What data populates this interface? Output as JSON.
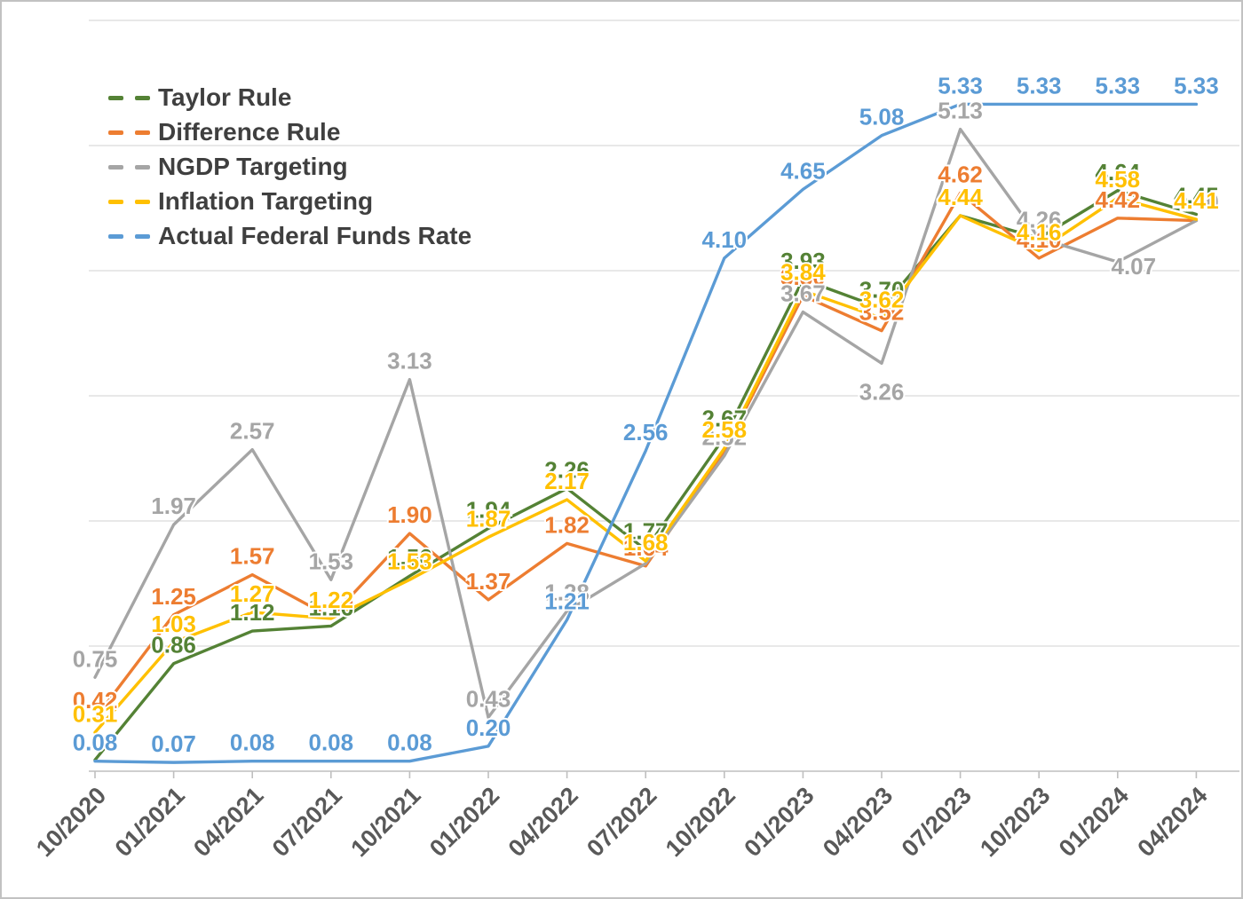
{
  "chart_data": {
    "type": "line",
    "title": "",
    "xlabel": "",
    "ylabel": "",
    "ylim": [
      0,
      6
    ],
    "grid": true,
    "legend_position": "top-left",
    "categories": [
      "10/2020",
      "01/2021",
      "04/2021",
      "07/2021",
      "10/2021",
      "01/2022",
      "04/2022",
      "07/2022",
      "10/2022",
      "01/2023",
      "04/2023",
      "07/2023",
      "10/2023",
      "01/2024",
      "04/2024"
    ],
    "series": [
      {
        "name": "Taylor Rule",
        "color": "#548235",
        "values": [
          0.09,
          0.86,
          1.12,
          1.16,
          1.56,
          1.94,
          2.26,
          1.77,
          2.67,
          3.93,
          3.7,
          4.44,
          4.26,
          4.64,
          4.45
        ],
        "labels": [
          "",
          "0.86",
          "1.12",
          "1.16",
          "1.56",
          "1.94",
          "2.26",
          "1.77",
          "2.67",
          "3.93",
          "3.70",
          "4.44",
          "4.26",
          "4.64",
          "4.45"
        ]
      },
      {
        "name": "Difference Rule",
        "color": "#ed7d31",
        "values": [
          0.42,
          1.25,
          1.57,
          1.23,
          1.9,
          1.37,
          1.82,
          1.64,
          2.56,
          3.8,
          3.52,
          4.62,
          4.1,
          4.42,
          4.4
        ],
        "labels": [
          "0.42",
          "1.25",
          "1.57",
          "1.23",
          "1.90",
          "1.37",
          "1.82",
          "1.64",
          "",
          "3.80",
          "3.52",
          "4.62",
          "4.10",
          "4.42",
          "4.40"
        ]
      },
      {
        "name": "NGDP Targeting",
        "color": "#a5a5a5",
        "values": [
          0.75,
          1.97,
          2.57,
          1.53,
          3.13,
          0.43,
          1.28,
          1.66,
          2.52,
          3.67,
          3.26,
          5.13,
          4.26,
          4.07,
          4.4
        ],
        "labels": [
          "0.75",
          "1.97",
          "2.57",
          "1.53",
          "3.13",
          "0.43",
          "1.28",
          "",
          "2.52",
          "3.67",
          "3.26",
          "5.13",
          "4.26",
          "4.07",
          "4.40"
        ]
      },
      {
        "name": "Inflation Targeting",
        "color": "#ffc000",
        "values": [
          0.31,
          1.03,
          1.27,
          1.22,
          1.53,
          1.87,
          2.17,
          1.68,
          2.58,
          3.84,
          3.62,
          4.44,
          4.16,
          4.58,
          4.41
        ],
        "labels": [
          "0.31",
          "1.03",
          "1.27",
          "1.22",
          "1.53",
          "1.87",
          "2.17",
          "1.68",
          "2.58",
          "3.84",
          "3.62",
          "4.44",
          "4.16",
          "4.58",
          "4.41"
        ]
      },
      {
        "name": "Actual Federal Funds Rate",
        "color": "#5b9bd5",
        "values": [
          0.08,
          0.07,
          0.08,
          0.08,
          0.08,
          0.2,
          1.21,
          2.56,
          4.1,
          4.65,
          5.08,
          5.33,
          5.33,
          5.33,
          5.33
        ],
        "labels": [
          "0.08",
          "0.07",
          "0.08",
          "0.08",
          "0.08",
          "0.20",
          "1.21",
          "2.56",
          "4.10",
          "4.65",
          "5.08",
          "5.33",
          "5.33",
          "5.33",
          "5.33"
        ]
      }
    ]
  },
  "colors": {
    "gridline": "#d9d9d9",
    "axis_line": "#bfbfbf",
    "axis_label": "#595959",
    "legend_text": "#3f3f3f",
    "background": "#ffffff"
  }
}
